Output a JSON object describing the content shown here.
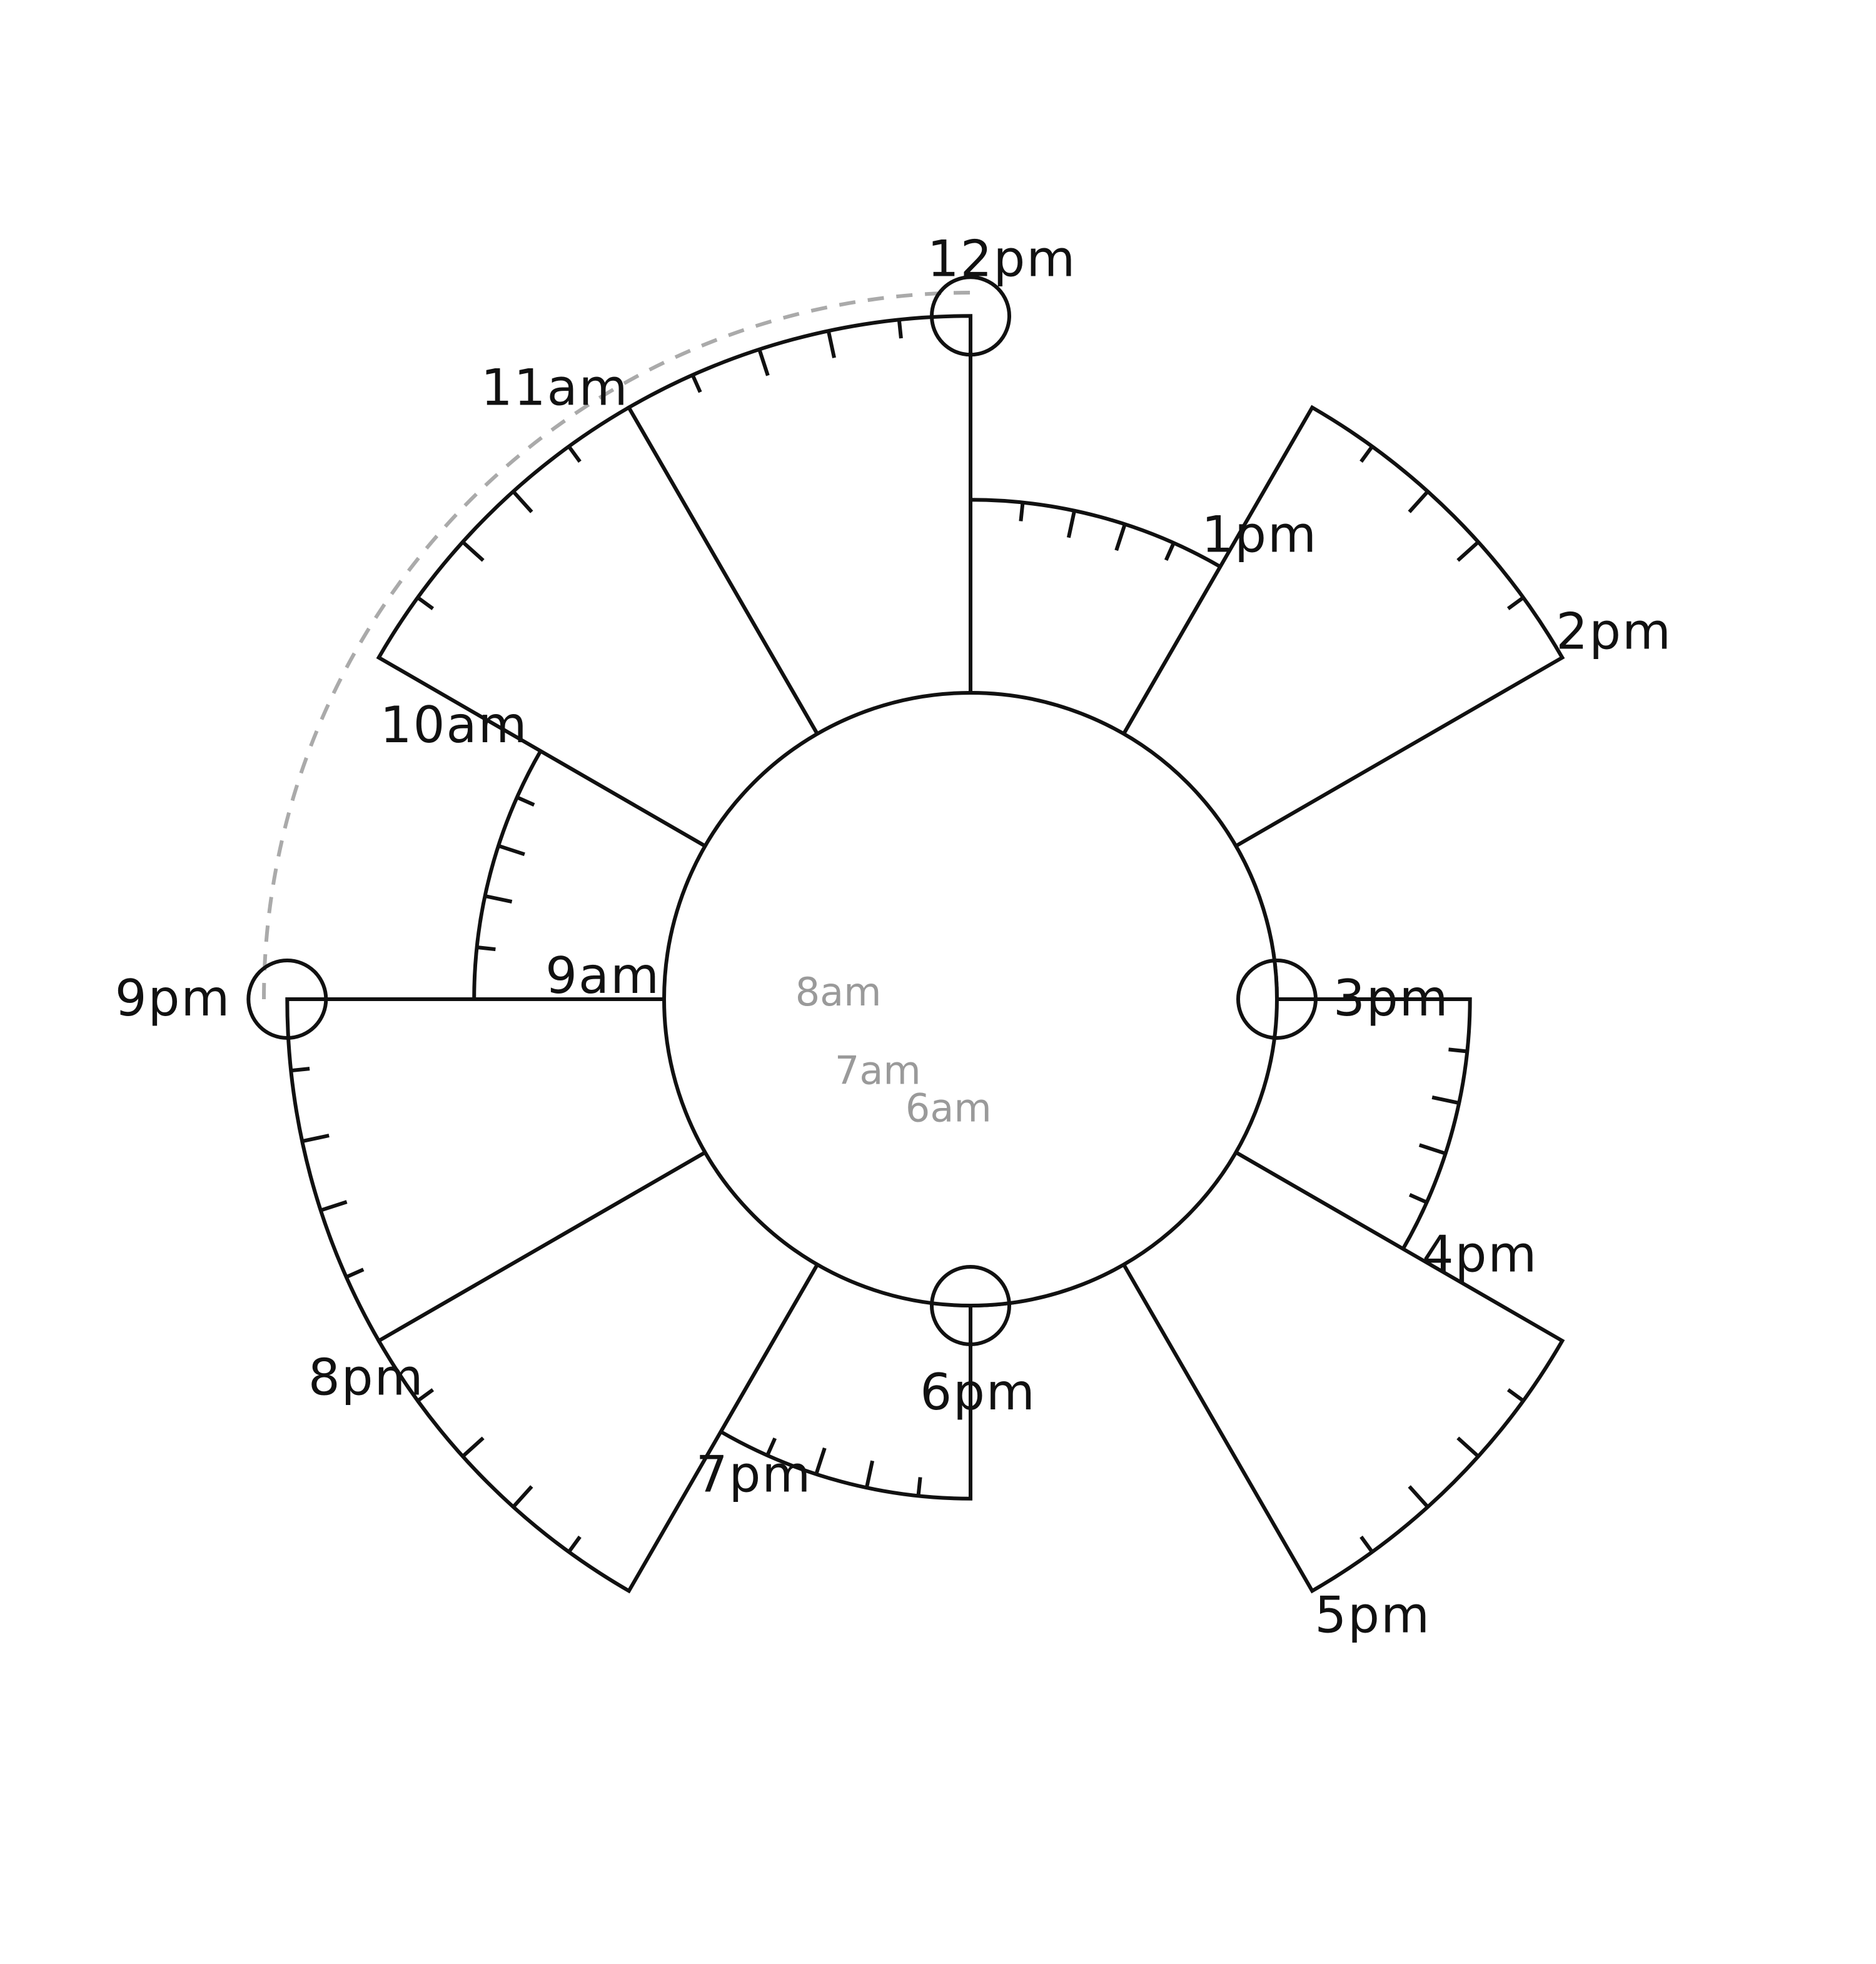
{
  "diagram": {
    "hours": [
      {
        "label": "6am",
        "value": 0.33,
        "early": true
      },
      {
        "label": "7am",
        "value": 0.4,
        "early": true
      },
      {
        "label": "8am",
        "value": 0.45,
        "early": true
      },
      {
        "label": "9am",
        "value": 1.0,
        "early": false
      },
      {
        "label": "10am",
        "value": 1.62,
        "early": false
      },
      {
        "label": "11am",
        "value": 2.23,
        "early": false
      },
      {
        "label": "12pm",
        "value": 2.23,
        "early": false,
        "marked": true
      },
      {
        "label": "1pm",
        "value": 1.63,
        "early": false
      },
      {
        "label": "2pm",
        "value": 2.23,
        "early": false
      },
      {
        "label": "3pm",
        "value": 1.0,
        "early": false,
        "marked": true
      },
      {
        "label": "4pm",
        "value": 1.63,
        "early": false
      },
      {
        "label": "5pm",
        "value": 2.23,
        "early": false
      },
      {
        "label": "6pm",
        "value": 1.0,
        "early": false,
        "marked": true
      },
      {
        "label": "7pm",
        "value": 1.63,
        "early": false
      },
      {
        "label": "8pm",
        "value": 2.23,
        "early": false
      },
      {
        "label": "9pm",
        "value": 2.23,
        "early": false,
        "marked": true
      }
    ],
    "colors": {
      "stroke": "#111111",
      "early_fill_light": "#e6e7e9",
      "early_fill_mid": "#d3d4d7",
      "early_fill_dark": "#bebfc2",
      "early_stroke": "#8f8f8f",
      "dashed_arc": "#aaaaaa",
      "hour_label": "#111111",
      "early_label": "#9a9a9a"
    }
  }
}
